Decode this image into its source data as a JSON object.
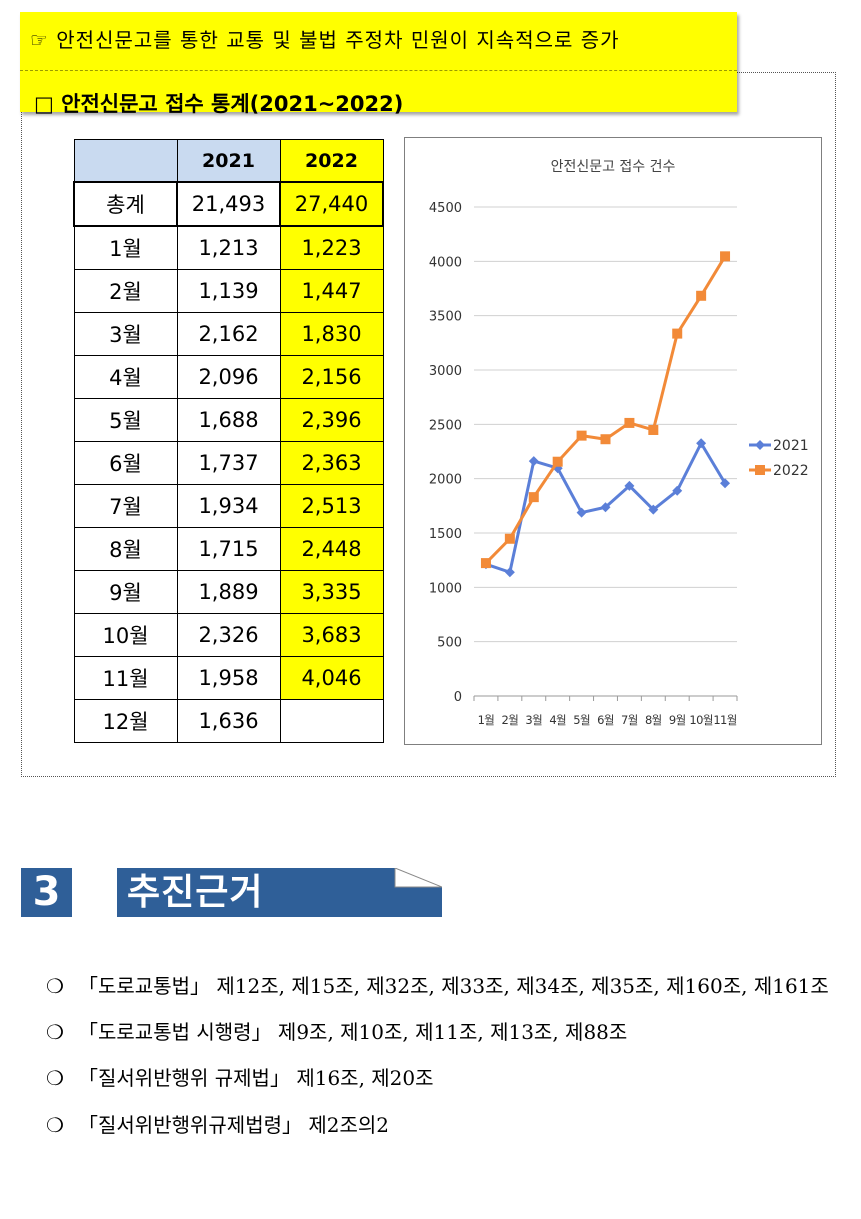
{
  "banner": {
    "headline": "☞ 안전신문고를 통한 교통 및 불법 주정차 민원이 지속적으로 증가",
    "subheading": "□  안전신문고 접수 통계(2021~2022)"
  },
  "table": {
    "headers": [
      "",
      "2021",
      "2022"
    ],
    "rows": [
      {
        "label": "총계",
        "v2021": "21,493",
        "v2022": "27,440"
      },
      {
        "label": "1월",
        "v2021": "1,213",
        "v2022": "1,223"
      },
      {
        "label": "2월",
        "v2021": "1,139",
        "v2022": "1,447"
      },
      {
        "label": "3월",
        "v2021": "2,162",
        "v2022": "1,830"
      },
      {
        "label": "4월",
        "v2021": "2,096",
        "v2022": "2,156"
      },
      {
        "label": "5월",
        "v2021": "1,688",
        "v2022": "2,396"
      },
      {
        "label": "6월",
        "v2021": "1,737",
        "v2022": "2,363"
      },
      {
        "label": "7월",
        "v2021": "1,934",
        "v2022": "2,513"
      },
      {
        "label": "8월",
        "v2021": "1,715",
        "v2022": "2,448"
      },
      {
        "label": "9월",
        "v2021": "1,889",
        "v2022": "3,335"
      },
      {
        "label": "10월",
        "v2021": "2,326",
        "v2022": "3,683"
      },
      {
        "label": "11월",
        "v2021": "1,958",
        "v2022": "4,046"
      },
      {
        "label": "12월",
        "v2021": "1,636",
        "v2022": ""
      }
    ]
  },
  "chart_data": {
    "type": "line",
    "title": "안전신문고 접수 건수",
    "categories": [
      "1월",
      "2월",
      "3월",
      "4월",
      "5월",
      "6월",
      "7월",
      "8월",
      "9월",
      "10월",
      "11월"
    ],
    "series": [
      {
        "name": "2021",
        "color": "#5b7fd8",
        "marker": "diamond",
        "values": [
          1213,
          1139,
          2162,
          2096,
          1688,
          1737,
          1934,
          1715,
          1889,
          2326,
          1958
        ]
      },
      {
        "name": "2022",
        "color": "#f28a38",
        "marker": "square",
        "values": [
          1223,
          1447,
          1830,
          2156,
          2396,
          2363,
          2513,
          2448,
          3335,
          3683,
          4046
        ]
      }
    ],
    "yticks": [
      0,
      500,
      1000,
      1500,
      2000,
      2500,
      3000,
      3500,
      4000,
      4500
    ],
    "ylim": [
      0,
      4500
    ],
    "grid": true,
    "legend": "right"
  },
  "section": {
    "number": "3",
    "title": "추진근거"
  },
  "bullets": [
    {
      "mark": "❍",
      "text": "「도로교통법」 제12조, 제15조, 제32조, 제33조, 제34조, 제35조, 제160조, 제161조"
    },
    {
      "mark": "❍",
      "text": "「도로교통법 시행령」 제9조, 제10조, 제11조, 제13조, 제88조"
    },
    {
      "mark": "❍",
      "text": "「질서위반행위 규제법」 제16조, 제20조"
    },
    {
      "mark": "❍",
      "text": "「질서위반행위규제법령」 제2조의2"
    }
  ]
}
